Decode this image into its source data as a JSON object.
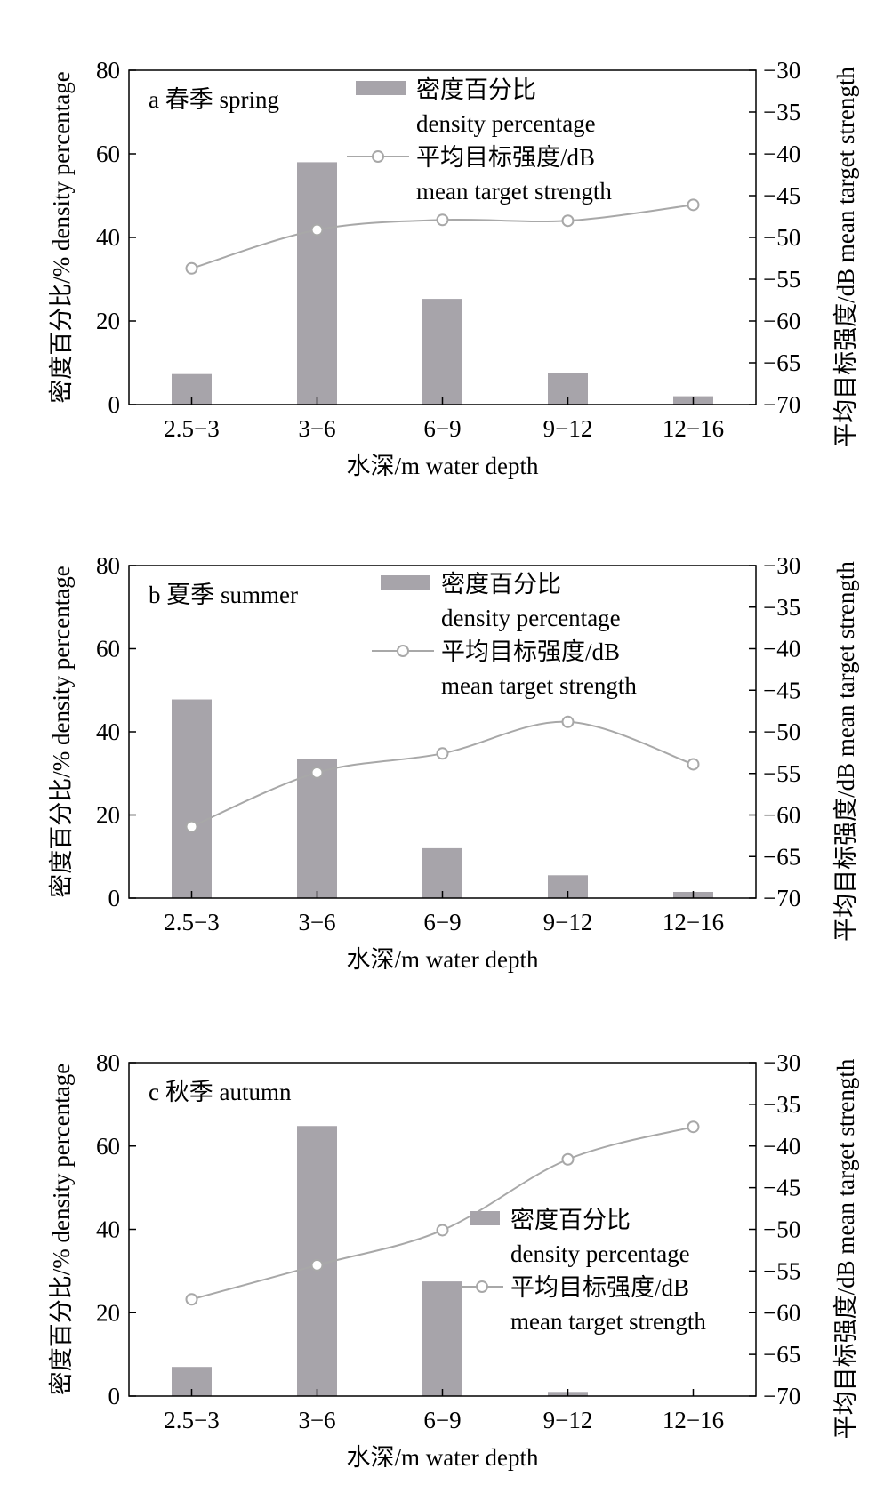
{
  "chart_data": [
    {
      "type": "bar+line",
      "title": "a  春季 spring",
      "xlabel": "水深/m water depth",
      "ylabel": "密度百分比/% density percentage",
      "y2label": "平均目标强度/dB mean target strength",
      "categories": [
        "2.5−3",
        "3−6",
        "6−9",
        "9−12",
        "12−16"
      ],
      "ylim": [
        0,
        80
      ],
      "yticks": [
        "0",
        "20",
        "40",
        "60",
        "80"
      ],
      "y2lim": [
        -70,
        -30
      ],
      "y2ticks": [
        "−70",
        "−65",
        "−60",
        "−55",
        "−50",
        "−45",
        "−40",
        "−35",
        "−30"
      ],
      "legend_position": "top-right",
      "series": [
        {
          "name": "密度百分比",
          "name_en": "density  percentage",
          "kind": "bar",
          "axis": "left",
          "values": [
            7.3,
            58.0,
            25.3,
            7.5,
            2.0
          ]
        },
        {
          "name": "平均目标强度/dB",
          "name_en": "mean target strength",
          "kind": "line",
          "axis": "right",
          "values": [
            -53.7,
            -49.1,
            -47.9,
            -48.0,
            -46.1
          ]
        }
      ]
    },
    {
      "type": "bar+line",
      "title": "b  夏季 summer",
      "xlabel": "水深/m water depth",
      "ylabel": "密度百分比/% density percentage",
      "y2label": "平均目标强度/dB mean target strength",
      "categories": [
        "2.5−3",
        "3−6",
        "6−9",
        "9−12",
        "12−16"
      ],
      "ylim": [
        0,
        80
      ],
      "yticks": [
        "0",
        "20",
        "40",
        "60",
        "80"
      ],
      "y2lim": [
        -70,
        -30
      ],
      "y2ticks": [
        "−70",
        "−65",
        "−60",
        "−55",
        "−50",
        "−45",
        "−40",
        "−35",
        "−30"
      ],
      "legend_position": "top-right",
      "series": [
        {
          "name": "密度百分比",
          "name_en": "density  percentage",
          "kind": "bar",
          "axis": "left",
          "values": [
            47.8,
            33.5,
            12.0,
            5.5,
            1.5
          ]
        },
        {
          "name": "平均目标强度/dB",
          "name_en": "mean target strength",
          "kind": "line",
          "axis": "right",
          "values": [
            -61.4,
            -54.9,
            -52.6,
            -48.8,
            -53.9
          ]
        }
      ]
    },
    {
      "type": "bar+line",
      "title": "c  秋季 autumn",
      "xlabel": "水深/m water depth",
      "ylabel": "密度百分比/% density percentage",
      "y2label": "平均目标强度/dB mean target strength",
      "categories": [
        "2.5−3",
        "3−6",
        "6−9",
        "9−12",
        "12−16"
      ],
      "ylim": [
        0,
        80
      ],
      "yticks": [
        "0",
        "20",
        "40",
        "60",
        "80"
      ],
      "y2lim": [
        -70,
        -30
      ],
      "y2ticks": [
        "−70",
        "−65",
        "−60",
        "−55",
        "−50",
        "−45",
        "−40",
        "−35",
        "−30"
      ],
      "legend_position": "middle-right",
      "series": [
        {
          "name": "密度百分比",
          "name_en": "density  percentage",
          "kind": "bar",
          "axis": "left",
          "values": [
            7.0,
            64.8,
            27.5,
            1.0,
            0
          ]
        },
        {
          "name": "平均目标强度/dB",
          "name_en": "mean target strength",
          "kind": "line",
          "axis": "right",
          "values": [
            -58.4,
            -54.3,
            -50.1,
            -41.6,
            -37.7
          ]
        }
      ]
    }
  ],
  "colors": {
    "bar": "#a7a4aa",
    "line": "#a8a8a8",
    "axis": "#000000",
    "marker_fill": "#ffffff"
  }
}
